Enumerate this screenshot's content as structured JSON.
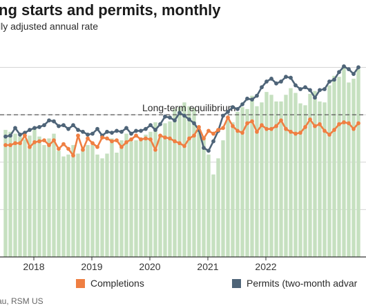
{
  "header": {
    "title": "ng starts and permits, monthly",
    "subtitle": "lly adjusted annual rate"
  },
  "legend": {
    "completions": "Completions",
    "permits": "Permits (two-month advar"
  },
  "source": "au, RSM US",
  "colors": {
    "bars": "#c6e0c0",
    "completions": "#ef7f42",
    "permits": "#4e6478",
    "grid": "#d4d4d4",
    "equilibrium": "#555555"
  },
  "chart_data": {
    "type": "bar",
    "x_tick_labels": [
      "2018",
      "2019",
      "2020",
      "2021",
      "2022"
    ],
    "annotations": [
      {
        "text": "Long-term equilibrium",
        "value": 1500
      }
    ],
    "ylim": [
      0,
      2200
    ],
    "grid": true,
    "legend_position": "bottom",
    "y_gridlines": [
      500,
      1000,
      1500,
      2000
    ],
    "series": [
      {
        "name": "",
        "values": [
          1340,
          1320,
          1300,
          1270,
          1240,
          1280,
          1370,
          1270,
          1180,
          1250,
          1300,
          1120,
          1060,
          1080,
          1180,
          1090,
          1150,
          1180,
          1180,
          1080,
          1040,
          1090,
          1250,
          1100,
          1230,
          1300,
          1220,
          1230,
          1260,
          1290,
          1320,
          1420,
          1270,
          1410,
          1430,
          1560,
          1580,
          1630,
          1590,
          1570,
          1340,
          1270,
          1080,
          870,
          1040,
          1230,
          1440,
          1420,
          1530,
          1580,
          1560,
          1700,
          1590,
          1630,
          1740,
          1710,
          1640,
          1640,
          1710,
          1780,
          1730,
          1620,
          1600,
          1720,
          1750,
          1640,
          1630,
          1810,
          1910,
          1900,
          2020,
          1840,
          1880,
          1980
        ]
      },
      {
        "name": "Completions",
        "values": [
          1180,
          1180,
          1200,
          1200,
          1280,
          1160,
          1210,
          1220,
          1230,
          1180,
          1230,
          1140,
          1190,
          1140,
          1070,
          1280,
          1130,
          1250,
          1200,
          1160,
          1260,
          1250,
          1220,
          1230,
          1160,
          1210,
          1240,
          1280,
          1240,
          1250,
          1240,
          1130,
          1280,
          1260,
          1250,
          1220,
          1200,
          1170,
          1250,
          1280,
          1370,
          1250,
          1330,
          1300,
          1340,
          1360,
          1470,
          1380,
          1330,
          1310,
          1410,
          1430,
          1320,
          1390,
          1350,
          1350,
          1380,
          1440,
          1350,
          1320,
          1300,
          1310,
          1370,
          1450,
          1380,
          1400,
          1330,
          1290,
          1340,
          1400,
          1420,
          1410,
          1350,
          1410
        ]
      },
      {
        "name": "Permits (two-month advar",
        "values": [
          1270,
          1280,
          1360,
          1290,
          1310,
          1340,
          1360,
          1370,
          1390,
          1440,
          1430,
          1380,
          1390,
          1350,
          1390,
          1340,
          1320,
          1290,
          1300,
          1350,
          1280,
          1320,
          1310,
          1330,
          1320,
          1360,
          1300,
          1330,
          1330,
          1350,
          1390,
          1340,
          1400,
          1480,
          1470,
          1440,
          1520,
          1490,
          1450,
          1410,
          1340,
          1150,
          1120,
          1220,
          1330,
          1490,
          1530,
          1580,
          1560,
          1610,
          1670,
          1660,
          1700,
          1790,
          1850,
          1880,
          1830,
          1850,
          1900,
          1890,
          1810,
          1770,
          1790,
          1760,
          1680,
          1760,
          1770,
          1850,
          1870,
          1950,
          2010,
          1980,
          1930,
          2000
        ]
      }
    ]
  }
}
